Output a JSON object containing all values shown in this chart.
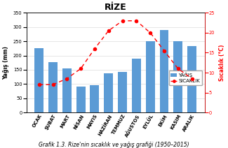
{
  "title": "RİZE",
  "ylabel_left": "Yağış (mm)",
  "ylabel_right": "Sıcaklık (°C)",
  "caption": "Grafik 1.3. Rize'nin sıcaklık ve yağış grafiği (1950–2015)",
  "months": [
    "OCAK",
    "ŞUBAT",
    "MART",
    "NİSAN",
    "MAYIS",
    "HAZİRAN",
    "TEMMUZ",
    "AĞUSTOS",
    "EYLÜL",
    "EKİM",
    "KASIM",
    "ARALIK"
  ],
  "precipitation": [
    225,
    178,
    155,
    90,
    97,
    137,
    143,
    190,
    250,
    290,
    250,
    232
  ],
  "temperature": [
    7,
    7,
    8.5,
    11,
    16,
    20.5,
    23,
    23,
    20,
    15.5,
    11,
    8.5
  ],
  "bar_color": "#5B9BD5",
  "line_color": "#FF0000",
  "ylim_left": [
    0,
    350
  ],
  "ylim_right": [
    0,
    25
  ],
  "yticks_left": [
    0,
    50,
    100,
    150,
    200,
    250,
    300,
    350
  ],
  "yticks_right": [
    0,
    5,
    10,
    15,
    20,
    25
  ],
  "legend_labels": [
    "YAĞIŞ",
    "SICAKLIK"
  ],
  "title_fontsize": 9,
  "label_fontsize": 5.5,
  "caption_fontsize": 5.5,
  "tick_fontsize": 4.8,
  "legend_fontsize": 5.0
}
